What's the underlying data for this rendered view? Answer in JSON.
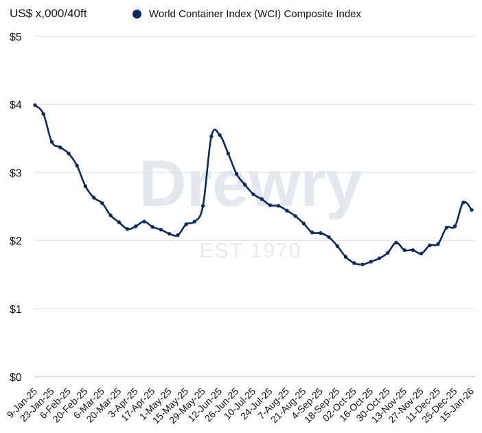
{
  "chart_data": {
    "type": "line",
    "ylabel": "US$ x,000/40ft",
    "ylim": [
      0,
      5
    ],
    "yticks": [
      "$0",
      "$1",
      "$2",
      "$3",
      "$4",
      "$5"
    ],
    "ytick_values": [
      0,
      1,
      2,
      3,
      4,
      5
    ],
    "grid": true,
    "legend_position": "top",
    "x_tick_labels": [
      "9-Jan-25",
      "23-Jan-25",
      "6-Feb-25",
      "20-Feb-25",
      "6-Mar-25",
      "20-Mar-25",
      "3-Apr-25",
      "17-Apr-25",
      "1-May-25",
      "15-May-25",
      "29-May-25",
      "12-Jun-25",
      "26-Jun-25",
      "10-Jul-25",
      "24-Jul-25",
      "7-Aug-25",
      "21-Aug-25",
      "4-Sep-25",
      "18-Sep-25",
      "02-Oct-25",
      "16-Oct-25",
      "30-Oct-25",
      "13-Nov-25",
      "27-Nov-25",
      "11-Dec-25",
      "25-Dec-25",
      "15-Jan-26"
    ],
    "series": [
      {
        "name": "World Container Index (WCI) Composite Index",
        "color": "#0b2a5b",
        "values": [
          3.99,
          3.86,
          3.45,
          3.37,
          3.28,
          3.1,
          2.8,
          2.63,
          2.55,
          2.37,
          2.27,
          2.17,
          2.21,
          2.28,
          2.2,
          2.16,
          2.1,
          2.08,
          2.24,
          2.28,
          2.51,
          3.53,
          3.55,
          3.28,
          2.98,
          2.82,
          2.68,
          2.61,
          2.52,
          2.51,
          2.44,
          2.36,
          2.25,
          2.12,
          2.11,
          2.05,
          1.92,
          1.76,
          1.67,
          1.65,
          1.69,
          1.74,
          1.82,
          1.97,
          1.86,
          1.86,
          1.81,
          1.93,
          1.95,
          2.19,
          2.21,
          2.56,
          2.45
        ]
      }
    ]
  },
  "watermark": {
    "brand": "Drewry",
    "established": "EST 1970"
  }
}
